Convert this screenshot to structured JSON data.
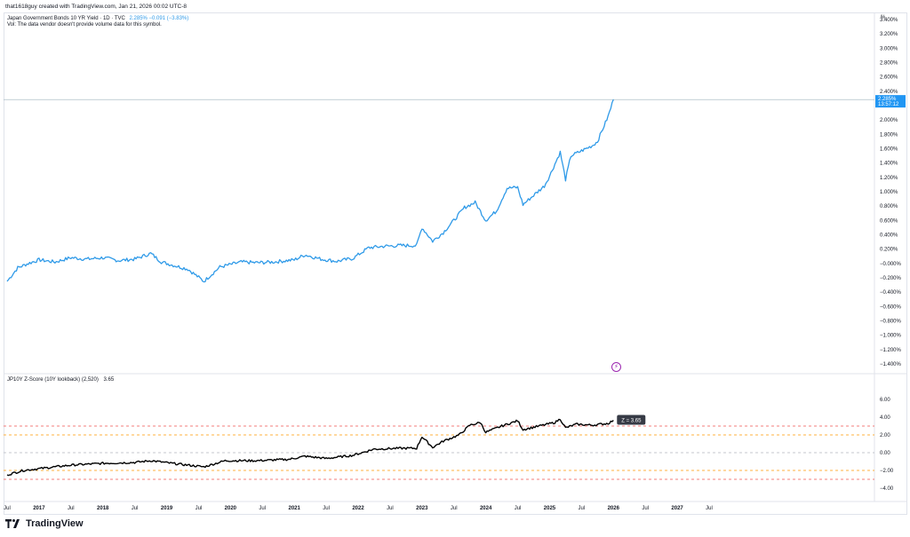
{
  "header": {
    "caption": "that1618guy created with TradingView.com, Jan 21, 2026 00:02 UTC-8"
  },
  "legend": {
    "main_name": "Japan Government Bonds 10 YR Yield · 1D · TVC",
    "main_values": "2.285%  −0.091 (−3.83%)",
    "volume_note": "Vol: The data vendor doesn't provide volume data for this symbol.",
    "indicator_name": "JP10Y Z-Score (10Y lookback) (2,520)",
    "indicator_value": "3.65"
  },
  "axis_unit": "%",
  "price_label": {
    "value": "2.285%",
    "time": "13:57:12"
  },
  "z_label": "Z = 3.65",
  "footer": {
    "brand": "TradingView"
  },
  "colors": {
    "price_line": "#2f9ae8",
    "z_line": "#000000",
    "label_bg": "#2196f3",
    "z_label_bg": "#363a45",
    "red_dashed": "#ef5350",
    "orange_dashed": "#ff9800",
    "gray_dashed": "#b2b5be"
  },
  "icons": {
    "alert": "lightning-icon",
    "brand": "tradingview-logo-icon"
  },
  "chart_data": [
    {
      "type": "line",
      "series": [
        {
          "values": [
            [
              "2016-07",
              -0.25
            ],
            [
              "2016-09",
              -0.06
            ],
            [
              "2016-11",
              0.0
            ],
            [
              "2017-01",
              0.05
            ],
            [
              "2017-04",
              0.02
            ],
            [
              "2017-07",
              0.08
            ],
            [
              "2017-10",
              0.06
            ],
            [
              "2018-01",
              0.08
            ],
            [
              "2018-04",
              0.04
            ],
            [
              "2018-07",
              0.06
            ],
            [
              "2018-10",
              0.14
            ],
            [
              "2018-12",
              0.02
            ],
            [
              "2019-02",
              -0.02
            ],
            [
              "2019-05",
              -0.08
            ],
            [
              "2019-08",
              -0.25
            ],
            [
              "2019-11",
              -0.05
            ],
            [
              "2020-03",
              0.02
            ],
            [
              "2020-06",
              0.01
            ],
            [
              "2020-09",
              0.02
            ],
            [
              "2021-01",
              0.05
            ],
            [
              "2021-03",
              0.12
            ],
            [
              "2021-06",
              0.06
            ],
            [
              "2021-09",
              0.03
            ],
            [
              "2021-12",
              0.07
            ],
            [
              "2022-03",
              0.22
            ],
            [
              "2022-06",
              0.24
            ],
            [
              "2022-09",
              0.25
            ],
            [
              "2022-12",
              0.25
            ],
            [
              "2023-01",
              0.5
            ],
            [
              "2023-03",
              0.31
            ],
            [
              "2023-05",
              0.43
            ],
            [
              "2023-07",
              0.6
            ],
            [
              "2023-09",
              0.78
            ],
            [
              "2023-11",
              0.85
            ],
            [
              "2024-01",
              0.6
            ],
            [
              "2024-03",
              0.73
            ],
            [
              "2024-05",
              1.05
            ],
            [
              "2024-07",
              1.06
            ],
            [
              "2024-08",
              0.82
            ],
            [
              "2024-10",
              0.95
            ],
            [
              "2024-12",
              1.08
            ],
            [
              "2025-01",
              1.22
            ],
            [
              "2025-03",
              1.55
            ],
            [
              "2025-04",
              1.17
            ],
            [
              "2025-05",
              1.5
            ],
            [
              "2025-07",
              1.57
            ],
            [
              "2025-09",
              1.64
            ],
            [
              "2025-10",
              1.7
            ],
            [
              "2025-12",
              2.05
            ],
            [
              "2026-01",
              2.285
            ]
          ]
        }
      ],
      "y_ticks": [
        "3.400%",
        "3.200%",
        "3.000%",
        "2.800%",
        "2.600%",
        "2.400%",
        "2.200%",
        "2.000%",
        "1.800%",
        "1.600%",
        "1.400%",
        "1.200%",
        "1.000%",
        "0.800%",
        "0.600%",
        "0.400%",
        "0.200%",
        "−0.000%",
        "−0.200%",
        "−0.400%",
        "−0.600%",
        "−0.800%",
        "−1.000%",
        "−1.200%",
        "−1.400%"
      ],
      "ylim": [
        -1.5,
        3.45
      ]
    },
    {
      "type": "line",
      "series": [
        {
          "values": [
            [
              "2016-07",
              -2.5
            ],
            [
              "2016-10",
              -2.0
            ],
            [
              "2017-01",
              -1.8
            ],
            [
              "2017-07",
              -1.4
            ],
            [
              "2018-01",
              -1.2
            ],
            [
              "2018-07",
              -1.1
            ],
            [
              "2018-10",
              -0.9
            ],
            [
              "2019-02",
              -1.2
            ],
            [
              "2019-08",
              -1.6
            ],
            [
              "2019-12",
              -0.9
            ],
            [
              "2020-06",
              -0.9
            ],
            [
              "2020-12",
              -0.75
            ],
            [
              "2021-03",
              -0.4
            ],
            [
              "2021-07",
              -0.65
            ],
            [
              "2021-12",
              -0.3
            ],
            [
              "2022-04",
              0.4
            ],
            [
              "2022-09",
              0.5
            ],
            [
              "2022-12",
              0.5
            ],
            [
              "2023-01",
              1.8
            ],
            [
              "2023-03",
              0.6
            ],
            [
              "2023-05",
              1.3
            ],
            [
              "2023-08",
              2.0
            ],
            [
              "2023-10",
              3.1
            ],
            [
              "2023-12",
              3.4
            ],
            [
              "2024-01",
              2.3
            ],
            [
              "2024-04",
              3.0
            ],
            [
              "2024-07",
              3.6
            ],
            [
              "2024-08",
              2.6
            ],
            [
              "2024-11",
              3.0
            ],
            [
              "2025-02",
              3.4
            ],
            [
              "2025-03",
              3.8
            ],
            [
              "2025-04",
              2.8
            ],
            [
              "2025-06",
              3.2
            ],
            [
              "2025-09",
              3.1
            ],
            [
              "2025-12",
              3.3
            ],
            [
              "2026-01",
              3.65
            ]
          ]
        }
      ],
      "y_ticks": [
        "6.00",
        "4.00",
        "2.00",
        "0.00",
        "−2.00",
        "−4.00"
      ],
      "ylim": [
        -4.8,
        6.2
      ],
      "reference_lines": [
        {
          "value": 3.0,
          "color": "#ef5350"
        },
        {
          "value": 2.0,
          "color": "#ff9800"
        },
        {
          "value": 0.0,
          "color": "#b2b5be"
        },
        {
          "value": -2.0,
          "color": "#ff9800"
        },
        {
          "value": -3.0,
          "color": "#ef5350"
        }
      ]
    }
  ],
  "x_axis": {
    "ticks": [
      "Jul",
      "2017",
      "Jul",
      "2018",
      "Jul",
      "2019",
      "Jul",
      "2020",
      "Jul",
      "2021",
      "Jul",
      "2022",
      "Jul",
      "2023",
      "Jul",
      "2024",
      "Jul",
      "2025",
      "Jul",
      "2026",
      "Jul",
      "2027",
      "Jul"
    ],
    "tick_dates": [
      "2016-07",
      "2017-01",
      "2017-07",
      "2018-01",
      "2018-07",
      "2019-01",
      "2019-07",
      "2020-01",
      "2020-07",
      "2021-01",
      "2021-07",
      "2022-01",
      "2022-07",
      "2023-01",
      "2023-07",
      "2024-01",
      "2024-07",
      "2025-01",
      "2025-07",
      "2026-01",
      "2026-07",
      "2027-01",
      "2027-07"
    ],
    "bold_labels": [
      "2017",
      "2018",
      "2019",
      "2020",
      "2021",
      "2022",
      "2023",
      "2024",
      "2025",
      "2026",
      "2027"
    ]
  }
}
